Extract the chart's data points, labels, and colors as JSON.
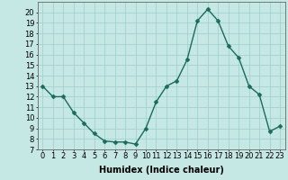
{
  "x": [
    0,
    1,
    2,
    3,
    4,
    5,
    6,
    7,
    8,
    9,
    10,
    11,
    12,
    13,
    14,
    15,
    16,
    17,
    18,
    19,
    20,
    21,
    22,
    23
  ],
  "y": [
    13,
    12,
    12,
    10.5,
    9.5,
    8.5,
    7.8,
    7.7,
    7.7,
    7.5,
    9.0,
    11.5,
    13.0,
    13.5,
    15.5,
    19.2,
    20.3,
    19.2,
    16.8,
    15.7,
    13.0,
    12.2,
    8.7,
    9.2
  ],
  "line_color": "#1a6b5a",
  "marker": "D",
  "marker_size": 2.5,
  "line_width": 1.0,
  "bg_color": "#c5e8e5",
  "grid_color": "#9ecfcb",
  "xlabel": "Humidex (Indice chaleur)",
  "xlabel_fontsize": 7,
  "tick_fontsize": 6,
  "ylim": [
    7,
    21
  ],
  "xlim": [
    -0.5,
    23.5
  ],
  "yticks": [
    7,
    8,
    9,
    10,
    11,
    12,
    13,
    14,
    15,
    16,
    17,
    18,
    19,
    20
  ],
  "xticks": [
    0,
    1,
    2,
    3,
    4,
    5,
    6,
    7,
    8,
    9,
    10,
    11,
    12,
    13,
    14,
    15,
    16,
    17,
    18,
    19,
    20,
    21,
    22,
    23
  ]
}
